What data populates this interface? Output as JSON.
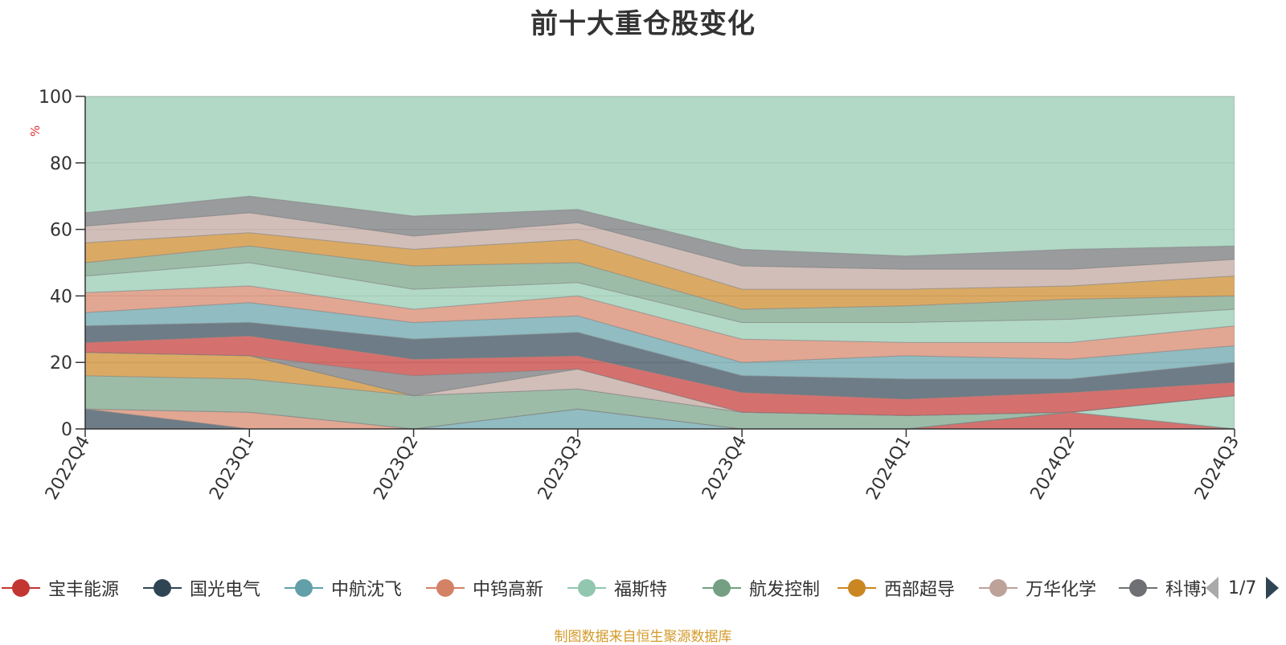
{
  "chart_data": {
    "type": "area",
    "title": "前十大重仓股变化",
    "ylabel": "%",
    "ylim": [
      0,
      100
    ],
    "yticks": [
      0,
      20,
      40,
      60,
      80,
      100
    ],
    "categories": [
      "2022Q4",
      "2023Q1",
      "2023Q2",
      "2023Q3",
      "2023Q4",
      "2024Q1",
      "2024Q2",
      "2024Q3"
    ],
    "grid": true,
    "series": [
      {
        "name": "宝丰能源",
        "color": "#c23531",
        "values": [
          0,
          0,
          0,
          0,
          0,
          0,
          5,
          0
        ]
      },
      {
        "name": "国光电气",
        "color": "#2f4554",
        "values": [
          6,
          0,
          0,
          0,
          0,
          0,
          0,
          0
        ]
      },
      {
        "name": "中航沈飞",
        "color": "#61a0a8",
        "values": [
          0,
          0,
          0,
          6,
          0,
          0,
          0,
          0
        ]
      },
      {
        "name": "中钨高新",
        "color": "#d48265",
        "values": [
          0,
          5,
          0,
          0,
          0,
          0,
          0,
          0
        ]
      },
      {
        "name": "福斯特",
        "color": "#91c7ae",
        "values": [
          0,
          0,
          0,
          0,
          0,
          0,
          0,
          10
        ]
      },
      {
        "name": "航发控制",
        "color": "#749f83",
        "values": [
          10,
          10,
          10,
          6,
          5,
          4,
          0,
          0
        ]
      },
      {
        "name": "西部超导",
        "color": "#ca8622",
        "values": [
          7,
          7,
          0,
          0,
          0,
          0,
          0,
          0
        ]
      },
      {
        "name": "万华化学",
        "color": "#bda29a",
        "values": [
          0,
          0,
          0,
          6,
          0,
          0,
          0,
          0
        ]
      },
      {
        "name": "科博达",
        "color": "#6e7074",
        "values": [
          0,
          0,
          6,
          0,
          0,
          0,
          0,
          0
        ]
      }
    ]
  },
  "legend": {
    "items": [
      {
        "label": "宝丰能源",
        "color": "#c23531"
      },
      {
        "label": "国光电气",
        "color": "#2f4554"
      },
      {
        "label": "中航沈飞",
        "color": "#61a0a8"
      },
      {
        "label": "中钨高新",
        "color": "#d48265"
      },
      {
        "label": "福斯特",
        "color": "#91c7ae"
      },
      {
        "label": "航发控制",
        "color": "#749f83"
      },
      {
        "label": "西部超导",
        "color": "#ca8622"
      },
      {
        "label": "万华化学",
        "color": "#bda29a"
      },
      {
        "label": "科博达",
        "color": "#6e7074"
      }
    ],
    "page_text": "1/7"
  },
  "background_series_colors": [
    "#c23531",
    "#2f4554",
    "#61a0a8",
    "#d48265",
    "#91c7ae",
    "#749f83",
    "#ca8622",
    "#bda29a",
    "#6e7074",
    "#546570",
    "#c4ccd3"
  ],
  "source_note": "制图数据来自恒生聚源数据库"
}
